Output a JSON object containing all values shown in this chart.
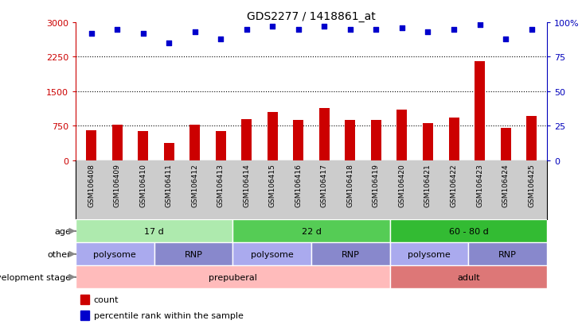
{
  "title": "GDS2277 / 1418861_at",
  "samples": [
    "GSM106408",
    "GSM106409",
    "GSM106410",
    "GSM106411",
    "GSM106412",
    "GSM106413",
    "GSM106414",
    "GSM106415",
    "GSM106416",
    "GSM106417",
    "GSM106418",
    "GSM106419",
    "GSM106420",
    "GSM106421",
    "GSM106422",
    "GSM106423",
    "GSM106424",
    "GSM106425"
  ],
  "counts": [
    660,
    770,
    640,
    380,
    770,
    640,
    900,
    1050,
    880,
    1130,
    870,
    870,
    1100,
    800,
    930,
    2150,
    700,
    960
  ],
  "percentile_ranks": [
    92,
    95,
    92,
    85,
    93,
    88,
    95,
    97,
    95,
    97,
    95,
    95,
    96,
    93,
    95,
    98,
    88,
    95
  ],
  "bar_color": "#cc0000",
  "dot_color": "#0000cc",
  "ylim_left": [
    0,
    3000
  ],
  "yticks_left": [
    0,
    750,
    1500,
    2250,
    3000
  ],
  "ylim_right": [
    0,
    100
  ],
  "yticks_right": [
    0,
    25,
    50,
    75,
    100
  ],
  "left_tick_color": "#cc0000",
  "right_tick_color": "#0000bb",
  "dotted_lines": [
    750,
    1500,
    2250
  ],
  "age_groups": [
    {
      "label": "17 d",
      "start": 0,
      "end": 6,
      "color": "#aeeaae"
    },
    {
      "label": "22 d",
      "start": 6,
      "end": 12,
      "color": "#55cc55"
    },
    {
      "label": "60 - 80 d",
      "start": 12,
      "end": 18,
      "color": "#33bb33"
    }
  ],
  "other_groups": [
    {
      "label": "polysome",
      "start": 0,
      "end": 3,
      "color": "#aaaaee"
    },
    {
      "label": "RNP",
      "start": 3,
      "end": 6,
      "color": "#8888cc"
    },
    {
      "label": "polysome",
      "start": 6,
      "end": 9,
      "color": "#aaaaee"
    },
    {
      "label": "RNP",
      "start": 9,
      "end": 12,
      "color": "#8888cc"
    },
    {
      "label": "polysome",
      "start": 12,
      "end": 15,
      "color": "#aaaaee"
    },
    {
      "label": "RNP",
      "start": 15,
      "end": 18,
      "color": "#8888cc"
    }
  ],
  "dev_groups": [
    {
      "label": "prepuberal",
      "start": 0,
      "end": 12,
      "color": "#ffbbbb"
    },
    {
      "label": "adult",
      "start": 12,
      "end": 18,
      "color": "#dd7777"
    }
  ],
  "row_labels": [
    "age",
    "other",
    "development stage"
  ],
  "legend_items": [
    {
      "color": "#cc0000",
      "label": "count"
    },
    {
      "color": "#0000cc",
      "label": "percentile rank within the sample"
    }
  ],
  "xlabel_bg": "#cccccc",
  "fig_bg": "#ffffff"
}
